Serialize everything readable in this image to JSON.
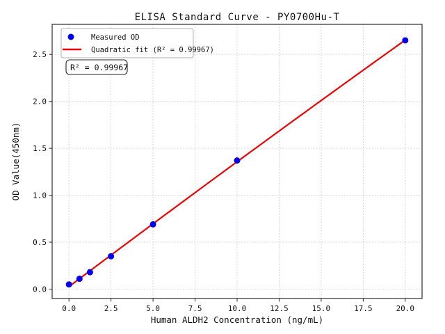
{
  "chart_data": {
    "type": "scatter",
    "title": "ELISA Standard Curve - PY0700Hu-T",
    "xlabel": "Human ALDH2 Concentration (ng/mL)",
    "ylabel": "OD Value(450nm)",
    "xlim": [
      -1,
      21
    ],
    "ylim": [
      -0.1,
      2.82
    ],
    "x_ticks": [
      0.0,
      2.5,
      5.0,
      7.5,
      10.0,
      12.5,
      15.0,
      17.5,
      20.0
    ],
    "y_ticks": [
      0.0,
      0.5,
      1.0,
      1.5,
      2.0,
      2.5
    ],
    "grid": true,
    "grid_color": "#cccccc",
    "legend_position": "upper left",
    "annotation": "R² = 0.99967",
    "series": [
      {
        "name": "Measured OD",
        "type": "scatter",
        "marker": "circle",
        "color": "#0000ee",
        "x": [
          0,
          0.625,
          1.25,
          2.5,
          5,
          10,
          20
        ],
        "y": [
          0.05,
          0.11,
          0.18,
          0.35,
          0.69,
          1.37,
          2.65
        ]
      },
      {
        "name": "Quadratic fit (R² = 0.99967)",
        "type": "quadratic_fit_line",
        "color": "#ee0000",
        "fit_of_series": 0,
        "x_range": [
          0,
          20
        ]
      }
    ]
  }
}
